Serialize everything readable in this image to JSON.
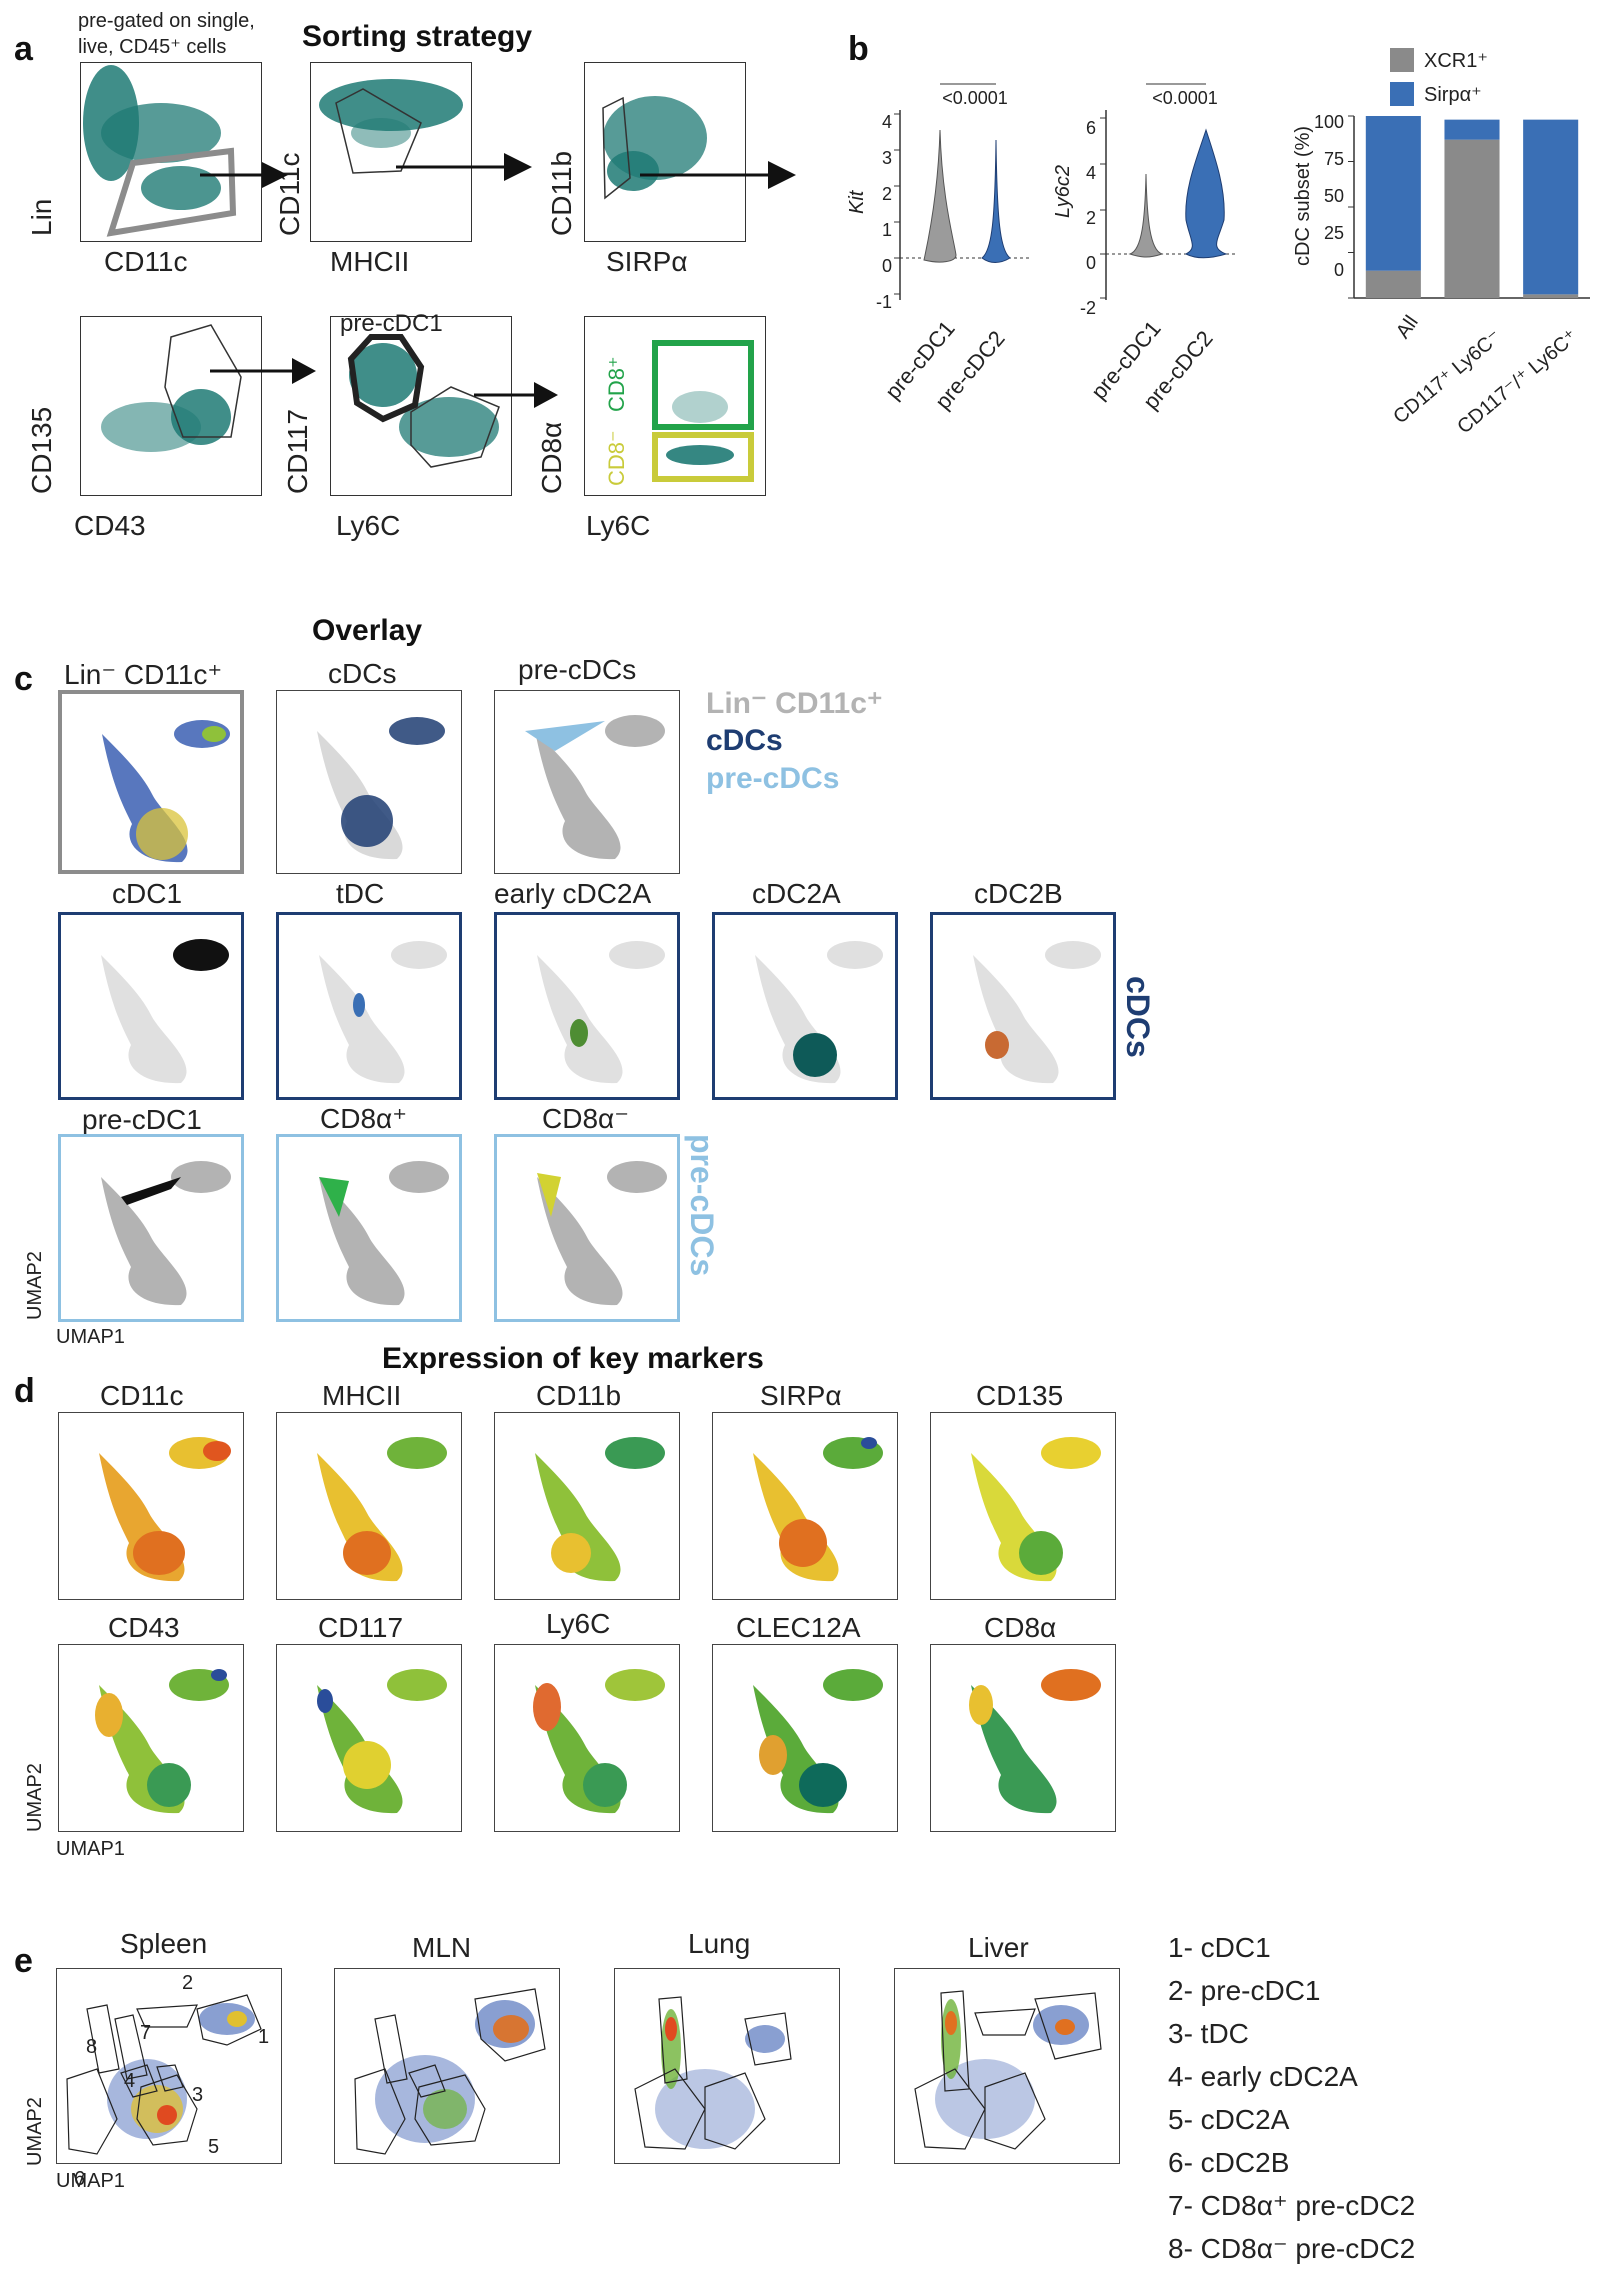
{
  "panel_labels": {
    "a": "a",
    "b": "b",
    "c": "c",
    "d": "d",
    "e": "e"
  },
  "panel_a": {
    "title": "Sorting strategy",
    "pregate_note_line1": "pre-gated on single,",
    "pregate_note_line2": "live, CD45⁺ cells",
    "plots": [
      {
        "y": "Lin",
        "x": "CD11c"
      },
      {
        "y": "CD11c",
        "x": "MHCII"
      },
      {
        "y": "CD11b",
        "x": "SIRPα"
      },
      {
        "y": "CD135",
        "x": "CD43"
      },
      {
        "y": "CD117",
        "x": "Ly6C",
        "gate": "pre-cDC1"
      },
      {
        "y": "CD8α",
        "x": "Ly6C",
        "gate_pos": "CD8⁺",
        "gate_neg": "CD8⁻"
      }
    ],
    "colors": {
      "dots": "#1f7a74",
      "gate_gray": "#8c8c8c",
      "gate_green": "#22a34a",
      "gate_yellow": "#c9cb3a"
    }
  },
  "panel_b": {
    "violin1": {
      "ylabel": "Kit",
      "pvalue": "<0.0001",
      "yticks": [
        "4",
        "3",
        "2",
        "1",
        "0",
        "-1"
      ],
      "groups": [
        "pre-cDC1",
        "pre-cDC2"
      ]
    },
    "violin2": {
      "ylabel": "Ly6c2",
      "pvalue": "<0.0001",
      "yticks": [
        "6",
        "4",
        "2",
        "0",
        "-2"
      ],
      "groups": [
        "pre-cDC1",
        "pre-cDC2"
      ]
    },
    "bar": {
      "ylabel": "cDC subset (%)",
      "yticks": [
        "100",
        "75",
        "50",
        "25",
        "0"
      ],
      "legend": [
        {
          "label": "XCR1⁺",
          "color": "#8a8a8a"
        },
        {
          "label": "Sirpα⁺",
          "color": "#3a6fb5"
        }
      ],
      "categories": [
        "All",
        "CD117⁺ Ly6C⁻",
        "CD117⁻/⁺ Ly6C⁺"
      ]
    }
  },
  "chart_data": {
    "type": "bar",
    "categories": [
      "All",
      "CD117⁺ Ly6C⁻",
      "CD117⁻/⁺ Ly6C⁺"
    ],
    "series": [
      {
        "name": "XCR1⁺",
        "values": [
          15,
          87,
          2
        ]
      },
      {
        "name": "Sirpα⁺",
        "values": [
          85,
          11,
          96
        ]
      }
    ],
    "ylabel": "cDC subset (%)",
    "ylim": [
      0,
      100
    ],
    "legend": "top"
  },
  "panel_c": {
    "title": "Overlay",
    "row1": [
      {
        "label": "Lin⁻ CD11c⁺"
      },
      {
        "label": "cDCs"
      },
      {
        "label": "pre-cDCs"
      }
    ],
    "legend": [
      {
        "label": "Lin⁻ CD11c⁺",
        "color": "#b3b3b3"
      },
      {
        "label": "cDCs",
        "color": "#1e3d72"
      },
      {
        "label": "pre-cDCs",
        "color": "#8ec1e2"
      }
    ],
    "row2": [
      {
        "label": "cDC1"
      },
      {
        "label": "tDC"
      },
      {
        "label": "early cDC2A"
      },
      {
        "label": "cDC2A"
      },
      {
        "label": "cDC2B"
      }
    ],
    "row2_side": "cDCs",
    "row3": [
      {
        "label": "pre-cDC1"
      },
      {
        "label": "CD8α⁺"
      },
      {
        "label": "CD8α⁻"
      }
    ],
    "row3_side": "pre-cDCs",
    "axis_x": "UMAP1",
    "axis_y": "UMAP2"
  },
  "panel_d": {
    "title": "Expression of key markers",
    "row1": [
      "CD11c",
      "MHCII",
      "CD11b",
      "SIRPα",
      "CD135"
    ],
    "row2": [
      "CD43",
      "CD117",
      "Ly6C",
      "CLEC12A",
      "CD8α"
    ],
    "axis_x": "UMAP1",
    "axis_y": "UMAP2"
  },
  "panel_e": {
    "tissues": [
      "Spleen",
      "MLN",
      "Lung",
      "Liver"
    ],
    "cluster_numbers": [
      "1",
      "2",
      "3",
      "4",
      "5",
      "6",
      "7",
      "8"
    ],
    "legend": [
      "1- cDC1",
      "2- pre-cDC1",
      "3- tDC",
      "4- early cDC2A",
      "5- cDC2A",
      "6- cDC2B",
      "7- CD8α⁺ pre-cDC2",
      "8- CD8α⁻ pre-cDC2"
    ],
    "axis_x": "UMAP1",
    "axis_y": "UMAP2"
  }
}
